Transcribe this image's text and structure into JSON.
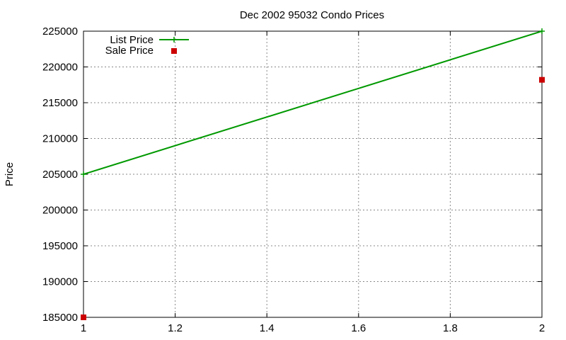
{
  "chart_data": {
    "type": "line",
    "title": "Dec 2002 95032 Condo Prices",
    "xlabel": "",
    "ylabel": "Price",
    "xlim": [
      1,
      2
    ],
    "ylim": [
      185000,
      225000
    ],
    "x_ticks": [
      1,
      1.2,
      1.4,
      1.6,
      1.8,
      2
    ],
    "x_tick_labels": [
      "1",
      "1.2",
      "1.4",
      "1.6",
      "1.8",
      "2"
    ],
    "y_ticks": [
      185000,
      190000,
      195000,
      200000,
      205000,
      210000,
      215000,
      220000,
      225000
    ],
    "y_tick_labels": [
      "185000",
      "190000",
      "195000",
      "200000",
      "205000",
      "210000",
      "215000",
      "220000",
      "225000"
    ],
    "grid": true,
    "legend_position": "top-left",
    "series": [
      {
        "name": "List Price",
        "style": "line",
        "marker": "plus",
        "color": "#009900",
        "points": [
          {
            "x": 1,
            "y": 205000
          },
          {
            "x": 2,
            "y": 225000
          }
        ]
      },
      {
        "name": "Sale Price",
        "style": "points",
        "marker": "square",
        "color": "#cc0000",
        "points": [
          {
            "x": 1,
            "y": 185000
          },
          {
            "x": 2,
            "y": 218200
          }
        ]
      }
    ]
  }
}
